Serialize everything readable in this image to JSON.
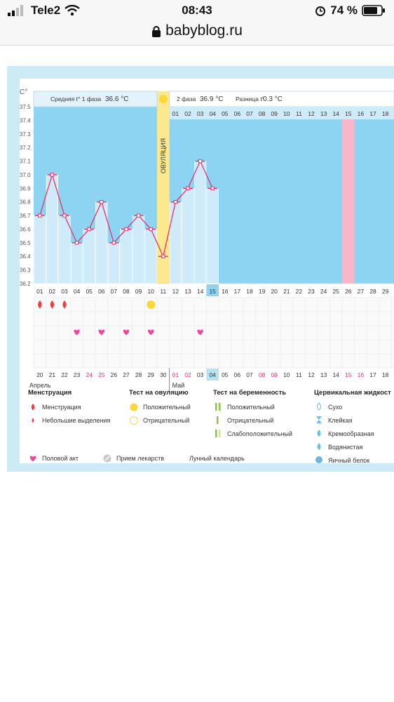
{
  "status_bar": {
    "carrier": "Tele2",
    "time": "08:43",
    "battery": "74 %"
  },
  "address_bar": {
    "url": "babyblog.ru"
  },
  "chart_data": {
    "type": "line",
    "y_unit": "C°",
    "ylim": [
      36.2,
      37.5
    ],
    "y_ticks": [
      "37.5",
      "37.4",
      "37.3",
      "37.2",
      "37.1",
      "37.0",
      "36.9",
      "36.8",
      "36.7",
      "36.6",
      "36.5",
      "36.4",
      "36.3",
      "36.2"
    ],
    "header": {
      "phase1_label": "Средняя t° 1 фаза",
      "phase1_value": "36.6 °C",
      "phase2_label": "2 фаза",
      "phase2_value": "36.9 °C",
      "diff_label": "Разница t°",
      "diff_value": "0.3 °C"
    },
    "ovulation_label": "ОВУЛЯЦИЯ",
    "top_days": [
      "01",
      "02",
      "03",
      "04",
      "05",
      "06",
      "07",
      "08",
      "09",
      "10",
      "11",
      "12",
      "13",
      "14",
      "15",
      "16",
      "17",
      "18"
    ],
    "cycle_days": [
      "01",
      "02",
      "03",
      "04",
      "05",
      "06",
      "07",
      "08",
      "09",
      "10",
      "11",
      "12",
      "13",
      "14",
      "15",
      "16",
      "17",
      "18",
      "19",
      "20",
      "21",
      "22",
      "23",
      "24",
      "25",
      "26",
      "27",
      "28",
      "29"
    ],
    "calendar_days": [
      "20",
      "21",
      "22",
      "23",
      "24",
      "25",
      "26",
      "27",
      "28",
      "29",
      "30",
      "01",
      "02",
      "03",
      "04",
      "05",
      "06",
      "07",
      "08",
      "09",
      "10",
      "11",
      "12",
      "13",
      "14",
      "15",
      "16",
      "17",
      "18"
    ],
    "weekend_days": [
      "24",
      "25",
      "01",
      "02",
      "08",
      "09",
      "15",
      "16"
    ],
    "month_april": "Апрель",
    "month_may": "Май",
    "temperatures": [
      36.7,
      37.0,
      36.7,
      36.5,
      36.6,
      36.8,
      36.5,
      36.6,
      36.7,
      36.6,
      36.4,
      36.8,
      36.9,
      37.1,
      36.9
    ],
    "menstruation_days": [
      1,
      2,
      3
    ],
    "ovulation_test_positive_days": [
      10
    ],
    "intercourse_days": [
      4,
      6,
      8,
      10,
      14
    ],
    "moon_days": [
      24
    ],
    "highlight_day": 26
  },
  "legend": {
    "menstruation": {
      "title": "Менструация",
      "items": [
        "Менструация",
        "Небольшие выделения"
      ]
    },
    "ovulation_test": {
      "title": "Тест на овуляцию",
      "items": [
        "Положительный",
        "Отрицательный"
      ]
    },
    "pregnancy_test": {
      "title": "Тест на беременность",
      "items": [
        "Положительный",
        "Отрицательный",
        "Слабоположительный"
      ]
    },
    "cervical": {
      "title": "Цервикальная жидкост",
      "items": [
        "Сухо",
        "Клейкая",
        "Кремообразная",
        "Водянистая",
        "Яичный белок"
      ]
    },
    "bottom": [
      "Половой акт",
      "Прием лекарств",
      "Лунный календарь"
    ]
  },
  "colors": {
    "sky": "#8dd3f2",
    "bar": "#cfeaf9",
    "line": "#e2336f",
    "ovulation": "#fce98f",
    "pink": "#f7b7c8",
    "moon": "#f29a1b",
    "sun": "#fcd73c"
  }
}
